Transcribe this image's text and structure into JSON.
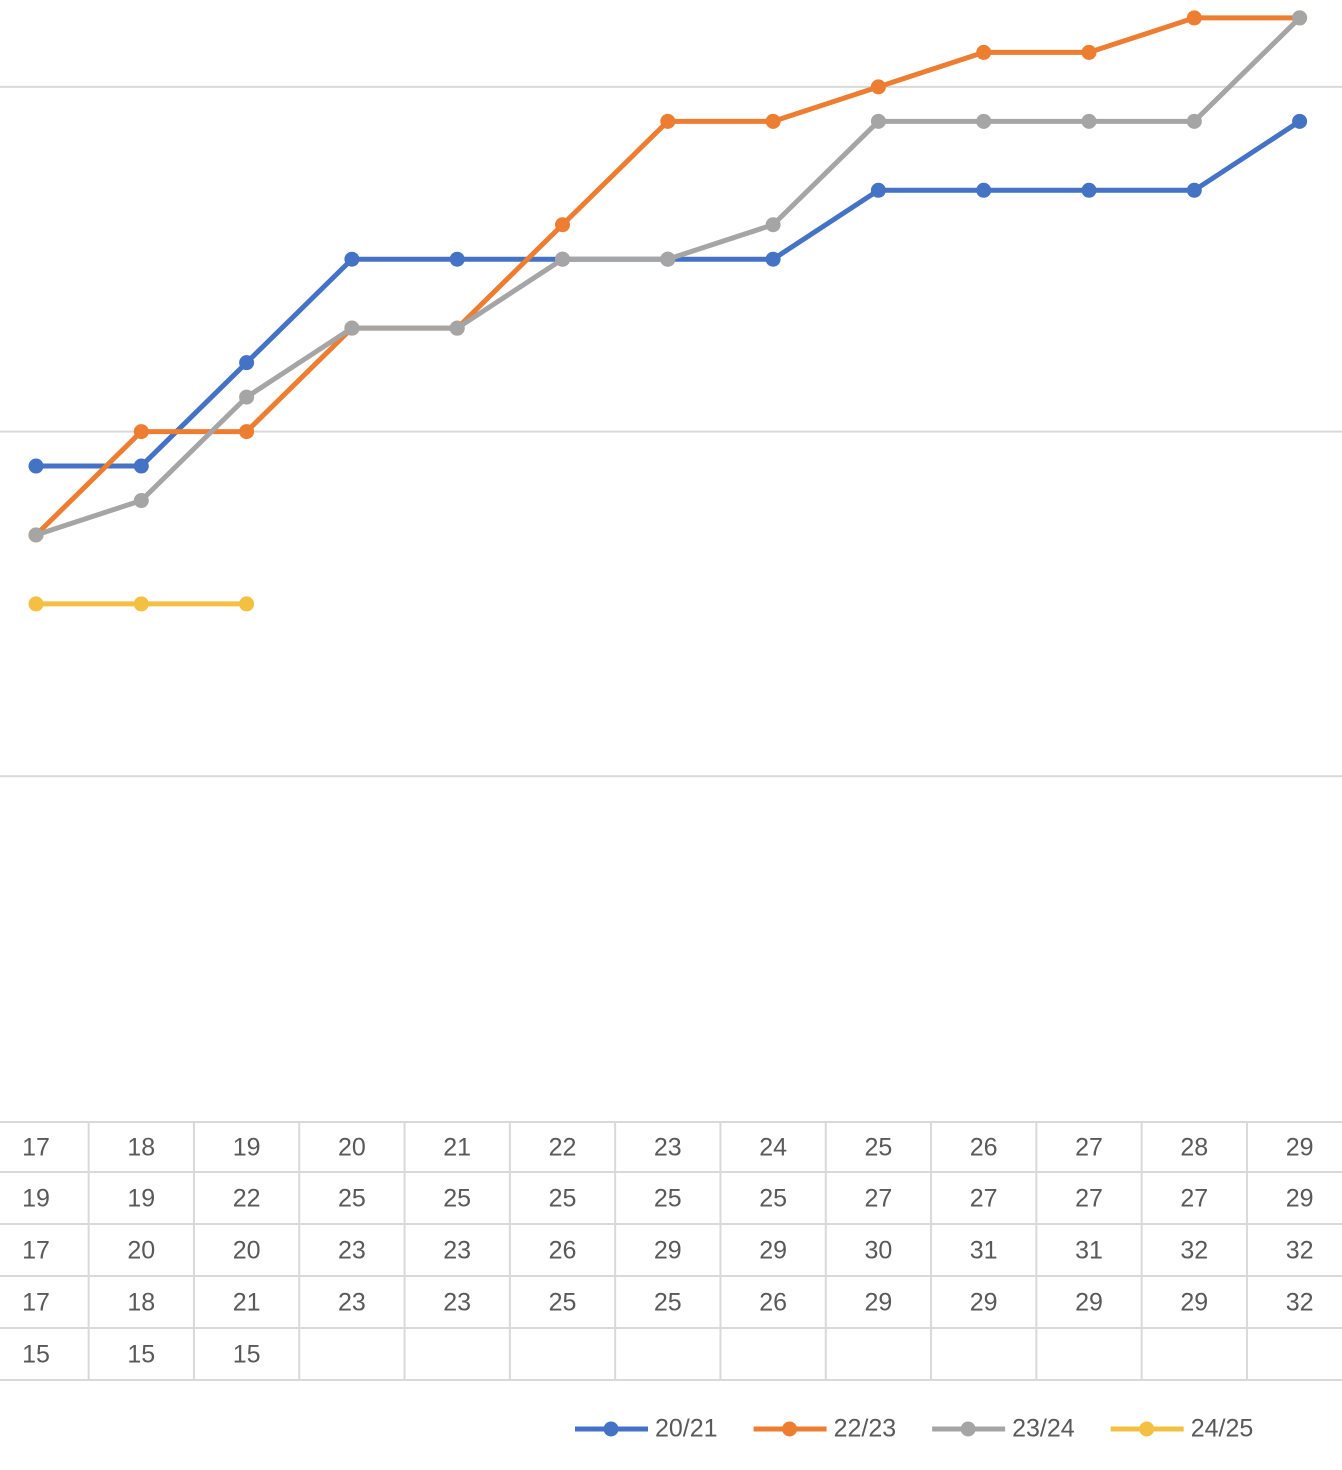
{
  "chart_data": {
    "type": "line",
    "categories": [
      17,
      18,
      19,
      20,
      21,
      22,
      23,
      24,
      25,
      26,
      27,
      28,
      29
    ],
    "series": [
      {
        "name": "20/21",
        "color": "#4472c4",
        "values": [
          19,
          19,
          22,
          25,
          25,
          25,
          25,
          25,
          27,
          27,
          27,
          27,
          29
        ]
      },
      {
        "name": "22/23",
        "color": "#ed7d31",
        "values": [
          17,
          20,
          20,
          23,
          23,
          26,
          29,
          29,
          30,
          31,
          31,
          32,
          32
        ]
      },
      {
        "name": "23/24",
        "color": "#a5a5a5",
        "values": [
          17,
          18,
          21,
          23,
          23,
          25,
          25,
          26,
          29,
          29,
          29,
          29,
          32
        ]
      },
      {
        "name": "24/25",
        "color": "#f4c042",
        "values": [
          15,
          15,
          15,
          null,
          null,
          null,
          null,
          null,
          null,
          null,
          null,
          null,
          null
        ]
      }
    ],
    "ylim": [
      0,
      32.52
    ],
    "yticks": [
      10,
      20,
      30
    ],
    "grid": true,
    "data_table": true,
    "legend": "bottom-right"
  }
}
